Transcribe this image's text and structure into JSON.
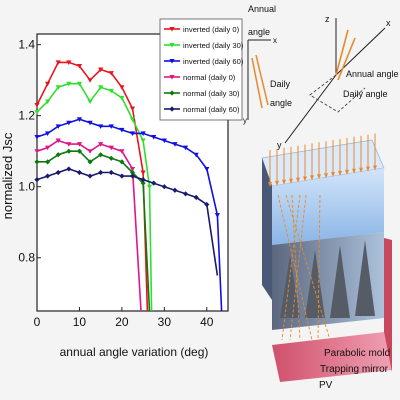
{
  "chart_data": {
    "type": "line",
    "xlabel": "annual angle variation (deg)",
    "ylabel": "normalized Jsc",
    "xlim": [
      0,
      45
    ],
    "ylim": [
      0.65,
      1.43
    ],
    "xticks": [
      0,
      10,
      20,
      30,
      40
    ],
    "yticks": [
      0.8,
      1.0,
      1.2,
      1.4
    ],
    "grid": false,
    "legend_position": "top-right",
    "series": [
      {
        "name": "inverted (daily 0)",
        "color": "#e8141e",
        "marker": "triangle-down",
        "x": [
          0,
          2.5,
          5,
          7.5,
          10,
          12.5,
          15,
          17.5,
          20,
          22.5,
          25,
          26
        ],
        "y": [
          1.23,
          1.29,
          1.35,
          1.35,
          1.34,
          1.3,
          1.33,
          1.32,
          1.28,
          1.22,
          1.04,
          0.65
        ]
      },
      {
        "name": "inverted (daily 30)",
        "color": "#2fe02f",
        "marker": "triangle-down",
        "x": [
          0,
          2.5,
          5,
          7.5,
          10,
          12.5,
          15,
          17.5,
          20,
          22.5,
          25,
          26.5,
          27
        ],
        "y": [
          1.21,
          1.24,
          1.28,
          1.29,
          1.29,
          1.24,
          1.28,
          1.27,
          1.25,
          1.19,
          1.13,
          1.0,
          0.65
        ]
      },
      {
        "name": "inverted (daily 60)",
        "color": "#1010e0",
        "marker": "triangle-down",
        "x": [
          0,
          2.5,
          5,
          7.5,
          10,
          12.5,
          15,
          17.5,
          20,
          22.5,
          25,
          27.5,
          30,
          32.5,
          35,
          37.5,
          40,
          42.5,
          43.5
        ],
        "y": [
          1.14,
          1.15,
          1.17,
          1.18,
          1.19,
          1.18,
          1.17,
          1.17,
          1.16,
          1.15,
          1.15,
          1.14,
          1.13,
          1.12,
          1.11,
          1.09,
          1.05,
          0.92,
          0.65
        ]
      },
      {
        "name": "normal (daily 0)",
        "color": "#e0148c",
        "marker": "triangle-down",
        "x": [
          0,
          2.5,
          5,
          7.5,
          10,
          12.5,
          15,
          17.5,
          20,
          22.5,
          24.5
        ],
        "y": [
          1.1,
          1.11,
          1.13,
          1.12,
          1.12,
          1.1,
          1.12,
          1.11,
          1.1,
          1.05,
          0.65
        ]
      },
      {
        "name": "normal (daily 30)",
        "color": "#0e7a0e",
        "marker": "diamond",
        "x": [
          0,
          2.5,
          5,
          7.5,
          10,
          12.5,
          15,
          17.5,
          20,
          22.5,
          25,
          26.5
        ],
        "y": [
          1.07,
          1.07,
          1.09,
          1.1,
          1.1,
          1.07,
          1.09,
          1.08,
          1.07,
          1.04,
          1.01,
          0.65
        ]
      },
      {
        "name": "normal (daily 60)",
        "color": "#1a1a6e",
        "marker": "diamond",
        "x": [
          0,
          2.5,
          5,
          7.5,
          10,
          12.5,
          15,
          17.5,
          20,
          22.5,
          25,
          27.5,
          30,
          32.5,
          35,
          37.5,
          40,
          42.5
        ],
        "y": [
          1.02,
          1.03,
          1.04,
          1.05,
          1.04,
          1.03,
          1.04,
          1.04,
          1.03,
          1.03,
          1.02,
          1.01,
          1.0,
          0.99,
          0.98,
          0.97,
          0.95,
          0.75
        ]
      }
    ]
  },
  "diagram": {
    "annual_angle_label": "Annual\nangle",
    "daily_angle_label": "Daily\nangle",
    "axis_x": "x",
    "axis_y": "y",
    "axis_z": "z",
    "annual_angle_3d": "Annual angle",
    "daily_angle_3d": "Daily angle",
    "axis_y_3d": "y",
    "parabolic_mold": "Parabolic mold",
    "trapping_mirror": "Trapping mirror",
    "pv": "PV",
    "colors": {
      "ray": "#e88a2a",
      "mold": "#6aa8e8",
      "pv": "#c84860"
    }
  }
}
